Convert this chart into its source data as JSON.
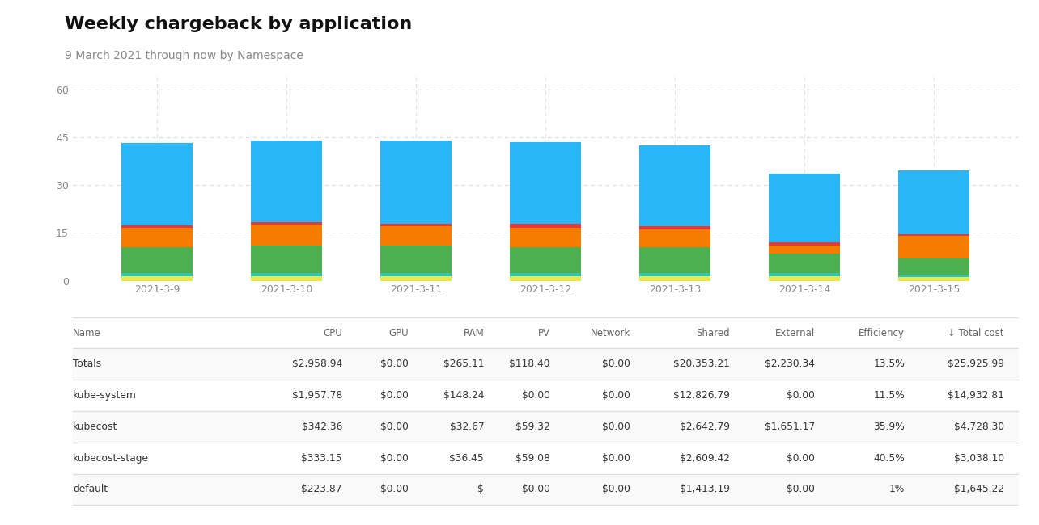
{
  "title": "Weekly chargeback by application",
  "subtitle": "9 March 2021 through now by Namespace",
  "background_color": "#ffffff",
  "dates": [
    "2021-3-9",
    "2021-3-10",
    "2021-3-11",
    "2021-3-12",
    "2021-3-13",
    "2021-3-14",
    "2021-3-15"
  ],
  "stacked_data": {
    "yellow": [
      1.5,
      1.5,
      1.5,
      1.5,
      1.5,
      1.5,
      1.2
    ],
    "teal": [
      1.0,
      1.0,
      1.0,
      1.0,
      1.0,
      1.0,
      0.8
    ],
    "green": [
      8.0,
      8.5,
      8.5,
      8.0,
      8.0,
      6.0,
      5.0
    ],
    "orange": [
      6.0,
      6.5,
      6.0,
      6.0,
      5.5,
      2.5,
      7.0
    ],
    "red": [
      0.8,
      1.0,
      1.0,
      1.5,
      1.0,
      1.0,
      0.5
    ],
    "blue": [
      26.0,
      25.5,
      26.0,
      25.5,
      25.5,
      21.5,
      20.0
    ]
  },
  "bar_colors": {
    "yellow": "#e8e84a",
    "teal": "#2ec4b6",
    "green": "#4caf50",
    "orange": "#f57c00",
    "red": "#e53935",
    "blue": "#29b6f6"
  },
  "ylim": [
    0,
    65
  ],
  "yticks": [
    0,
    15,
    30,
    45,
    60
  ],
  "grid_color": "#dddddd",
  "axis_color": "#888888",
  "table_columns": [
    "Name",
    "CPU",
    "GPU",
    "RAM",
    "PV",
    "Network",
    "Shared",
    "External",
    "Efficiency",
    "↓ Total cost"
  ],
  "table_data": [
    [
      "Totals",
      "$2,958.94",
      "$0.00",
      "$265.11",
      "$118.40",
      "$0.00",
      "$20,353.21",
      "$2,230.34",
      "13.5%",
      "$25,925.99"
    ],
    [
      "kube-system",
      "$1,957.78",
      "$0.00",
      "$148.24",
      "$0.00",
      "$0.00",
      "$12,826.79",
      "$0.00",
      "11.5%",
      "$14,932.81"
    ],
    [
      "kubecost",
      "$342.36",
      "$0.00",
      "$32.67",
      "$59.32",
      "$0.00",
      "$2,642.79",
      "$1,651.17",
      "35.9%",
      "$4,728.30"
    ],
    [
      "kubecost-stage",
      "$333.15",
      "$0.00",
      "$36.45",
      "$59.08",
      "$0.00",
      "$2,609.42",
      "$0.00",
      "40.5%",
      "$3,038.10"
    ],
    [
      "default",
      "$223.87",
      "$0.00",
      "$",
      "$0.00",
      "$0.00",
      "$1,413.19",
      "$0.00",
      "1%",
      "$1,645.22"
    ]
  ],
  "col_widths": [
    0.195,
    0.09,
    0.07,
    0.08,
    0.07,
    0.085,
    0.105,
    0.09,
    0.095,
    0.105
  ],
  "text_color": "#333333",
  "separator_color": "#dddddd",
  "header_text_color": "#666666"
}
